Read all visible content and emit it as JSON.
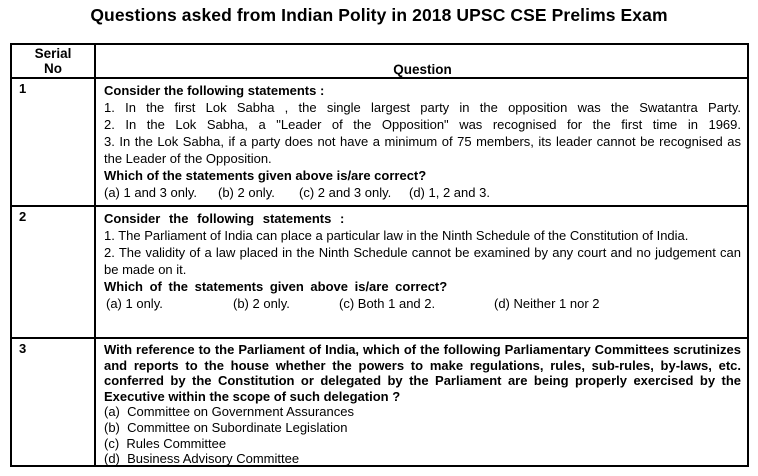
{
  "page_title": "Questions asked from Indian Polity in 2018 UPSC CSE Prelims Exam",
  "table": {
    "header": {
      "serial": "Serial No",
      "question": "Question"
    },
    "rows": [
      {
        "serial": "1",
        "intro": "Consider the following statements :",
        "statements": [
          "1. In the first Lok Sabha , the single largest party in the opposition was the Swatantra Party.",
          "2. In the Lok Sabha, a \"Leader of the Opposition\" was recognised for the first time in 1969.",
          "3. In the Lok Sabha, if a party does not have a minimum of 75 members, its leader cannot be recognised as the Leader of the Opposition."
        ],
        "prompt": "Which of the statements given above is/are correct?",
        "options": [
          "(a) 1 and 3 only.",
          "(b) 2 only.",
          "(c) 2 and 3 only.",
          "(d) 1, 2 and 3."
        ]
      },
      {
        "serial": "2",
        "intro": "Consider the following statements :",
        "statements": [
          "1. The Parliament of India can place a particular law in the Ninth Schedule of the Constitution of India.",
          "2. The validity of a law placed in the Ninth Schedule cannot be examined by any court and no judgement  can be made on it."
        ],
        "prompt": "Which of the statements  given above is/are correct?",
        "options": [
          "(a) 1 only.",
          "(b) 2 only.",
          "(c) Both 1 and 2.",
          "(d) Neither 1 nor 2"
        ]
      },
      {
        "serial": "3",
        "question": "With reference to the Parliament of India, which of the following Parliamentary Committees scrutinizes and reports to the house whether the powers to make regulations, rules, sub-rules, by-laws, etc. conferred by the Constitution or delegated by the Parliament are being properly exercised by the Executive within the scope of such delegation ?",
        "options": [
          "(a)  Committee on Government Assurances",
          "(b)  Committee on Subordinate Legislation",
          "(c)  Rules Committee",
          "(d)  Business Advisory Committee"
        ]
      }
    ]
  }
}
